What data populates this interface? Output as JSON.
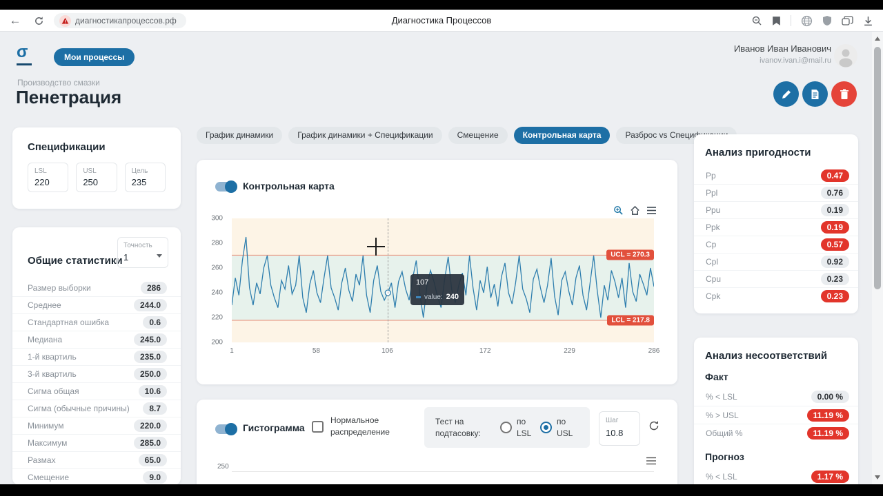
{
  "browser": {
    "url": "диагностикапроцессов.рф",
    "window_title": "Диагностика Процессов",
    "back_glyph": "←"
  },
  "header": {
    "logo_glyph": "σ",
    "my_processes_button": "Мои процессы",
    "user_name": "Иванов Иван Иванович",
    "user_email": "ivanov.ivan.i@mail.ru",
    "breadcrumb": "Производство смазки",
    "page_title": "Пенетрация"
  },
  "tabs": [
    {
      "label": "График динамики",
      "active": false
    },
    {
      "label": "График динамики + Спецификации",
      "active": false
    },
    {
      "label": "Смещение",
      "active": false
    },
    {
      "label": "Контрольная карта",
      "active": true
    },
    {
      "label": "Разброс vs Спецификации",
      "active": false
    }
  ],
  "specifications": {
    "title": "Спецификации",
    "fields": [
      {
        "label": "LSL",
        "value": "220"
      },
      {
        "label": "USL",
        "value": "250"
      },
      {
        "label": "Цель",
        "value": "235"
      }
    ]
  },
  "statistics": {
    "title": "Общие статистики",
    "precision_label": "Точность",
    "precision_value": "1",
    "rows": [
      {
        "label": "Размер выборки",
        "value": "286",
        "alert": false
      },
      {
        "label": "Среднее",
        "value": "244.0",
        "alert": false
      },
      {
        "label": "Стандартная ошибка",
        "value": "0.6",
        "alert": false
      },
      {
        "label": "Медиана",
        "value": "245.0",
        "alert": false
      },
      {
        "label": "1-й квартиль",
        "value": "235.0",
        "alert": false
      },
      {
        "label": "3-й квартиль",
        "value": "250.0",
        "alert": false
      },
      {
        "label": "Сигма общая",
        "value": "10.6",
        "alert": false
      },
      {
        "label": "Сигма (обычные причины)",
        "value": "8.7",
        "alert": false
      },
      {
        "label": "Минимум",
        "value": "220.0",
        "alert": false
      },
      {
        "label": "Максимум",
        "value": "285.0",
        "alert": false
      },
      {
        "label": "Размах",
        "value": "65.0",
        "alert": false
      },
      {
        "label": "Смещение",
        "value": "9.0",
        "alert": false
      }
    ]
  },
  "control_chart": {
    "title": "Контрольная карта",
    "toggle_on": true,
    "ucl_label": "UCL = 270.3",
    "lcl_label": "LCL = 217.8",
    "tooltip": {
      "index": "107",
      "label": "value:",
      "value": "240"
    }
  },
  "capability": {
    "title": "Анализ пригодности",
    "rows": [
      {
        "label": "Pp",
        "value": "0.47",
        "alert": true
      },
      {
        "label": "Ppl",
        "value": "0.76",
        "alert": false
      },
      {
        "label": "Ppu",
        "value": "0.19",
        "alert": false
      },
      {
        "label": "Ppk",
        "value": "0.19",
        "alert": true
      },
      {
        "label": "Cp",
        "value": "0.57",
        "alert": true
      },
      {
        "label": "Cpl",
        "value": "0.92",
        "alert": false
      },
      {
        "label": "Cpu",
        "value": "0.23",
        "alert": false
      },
      {
        "label": "Cpk",
        "value": "0.23",
        "alert": true
      }
    ]
  },
  "nonconformance": {
    "title": "Анализ несоответствий",
    "fact_title": "Факт",
    "fact_rows": [
      {
        "label": "% < LSL",
        "value": "0.00 %",
        "alert": false
      },
      {
        "label": "% > USL",
        "value": "11.19 %",
        "alert": true
      },
      {
        "label": "Общий %",
        "value": "11.19 %",
        "alert": true
      }
    ],
    "forecast_title": "Прогноз",
    "forecast_rows": [
      {
        "label": "% < LSL",
        "value": "1.17 %",
        "alert": true
      }
    ]
  },
  "histogram": {
    "title": "Гистограмма",
    "toggle_on": true,
    "normal_checkbox_label": "Нормальное распределение",
    "normal_checked": false,
    "test_label": "Тест на подтасовку:",
    "radio_lsl_label": "по LSL",
    "radio_usl_label": "по USL",
    "radio_selected": "usl",
    "step_label": "Шаг",
    "step_value": "10.8",
    "first_ytick": "250"
  },
  "chart_data": {
    "type": "line",
    "title": "Контрольная карта",
    "ylim": [
      200,
      300
    ],
    "y_ticks": [
      300,
      280,
      260,
      240,
      220,
      200
    ],
    "x_ticks": [
      1,
      58,
      106,
      172,
      229,
      286
    ],
    "x_range": [
      1,
      286
    ],
    "n_samples": 286,
    "ucl": 270.3,
    "lcl": 217.8,
    "mean": 244.0,
    "hover_index": 44,
    "hover_point": {
      "sample": 107,
      "value": 240
    },
    "legend": "none",
    "grid": "off",
    "values": [
      230,
      252,
      238,
      266,
      285,
      244,
      230,
      248,
      239,
      260,
      270,
      246,
      236,
      228,
      250,
      243,
      262,
      239,
      246,
      270,
      236,
      224,
      247,
      258,
      240,
      232,
      252,
      270,
      244,
      236,
      226,
      248,
      260,
      242,
      233,
      255,
      246,
      270,
      238,
      224,
      250,
      262,
      241,
      234,
      240,
      248,
      228,
      249,
      257,
      243,
      234,
      252,
      266,
      239,
      220,
      246,
      258,
      249,
      237,
      228,
      251,
      269,
      242,
      232,
      246,
      256,
      238,
      270,
      244,
      226,
      250,
      240,
      261,
      236,
      247,
      229,
      253,
      264,
      240,
      231,
      248,
      270,
      243,
      235,
      224,
      251,
      259,
      244,
      232,
      246,
      268,
      237,
      222,
      250,
      257,
      241,
      230,
      252,
      262,
      238,
      226,
      248,
      270,
      242,
      220,
      246,
      234,
      258,
      249,
      236,
      252,
      228,
      264,
      241,
      233,
      255,
      247,
      238,
      260,
      245
    ],
    "colors": {
      "line": "#2e7eae",
      "in_band": "#e7f2ec",
      "out_band": "#fdf4e6",
      "limit_line": "#e8937e",
      "limit_label_bg": "#e2503c"
    }
  }
}
